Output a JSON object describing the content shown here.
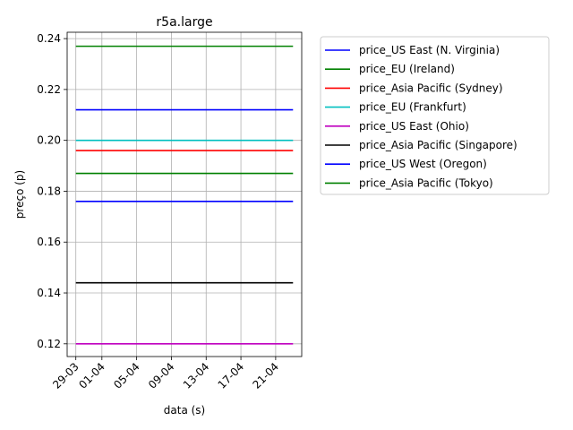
{
  "chart_data": {
    "type": "line",
    "title": "r5a.large",
    "xlabel": "data (s)",
    "ylabel": "preço (p)",
    "x_start": "2018-03-29",
    "x_end": "2018-04-23",
    "x_ticks": [
      {
        "date": "2018-03-29",
        "label": "29-03"
      },
      {
        "date": "2018-04-01",
        "label": "01-04"
      },
      {
        "date": "2018-04-05",
        "label": "05-04"
      },
      {
        "date": "2018-04-09",
        "label": "09-04"
      },
      {
        "date": "2018-04-13",
        "label": "13-04"
      },
      {
        "date": "2018-04-17",
        "label": "17-04"
      },
      {
        "date": "2018-04-21",
        "label": "21-04"
      }
    ],
    "y_ticks": [
      "0.12",
      "0.14",
      "0.16",
      "0.18",
      "0.20",
      "0.22",
      "0.24"
    ],
    "ylim": [
      0.115,
      0.2425
    ],
    "xlim": [
      "2018-03-28",
      "2018-04-24"
    ],
    "grid": true,
    "legend_position": "outside-right",
    "series": [
      {
        "name": "price_US East (N. Virginia)",
        "color": "#0000ff",
        "values": [
          0.212,
          0.212
        ]
      },
      {
        "name": "price_EU (Ireland)",
        "color": "#008000",
        "values": [
          0.237,
          0.237
        ]
      },
      {
        "name": "price_Asia Pacific (Sydney)",
        "color": "#ff0000",
        "values": [
          0.196,
          0.196
        ]
      },
      {
        "name": "price_EU (Frankfurt)",
        "color": "#00bfbf",
        "values": [
          0.2,
          0.2
        ]
      },
      {
        "name": "price_US East (Ohio)",
        "color": "#bf00bf",
        "values": [
          0.12,
          0.12
        ]
      },
      {
        "name": "price_Asia Pacific (Singapore)",
        "color": "#000000",
        "values": [
          0.144,
          0.144
        ]
      },
      {
        "name": "price_US West (Oregon)",
        "color": "#0000ff",
        "values": [
          0.176,
          0.176
        ]
      },
      {
        "name": "price_Asia Pacific (Tokyo)",
        "color": "#008000",
        "values": [
          0.187,
          0.187
        ]
      }
    ]
  }
}
